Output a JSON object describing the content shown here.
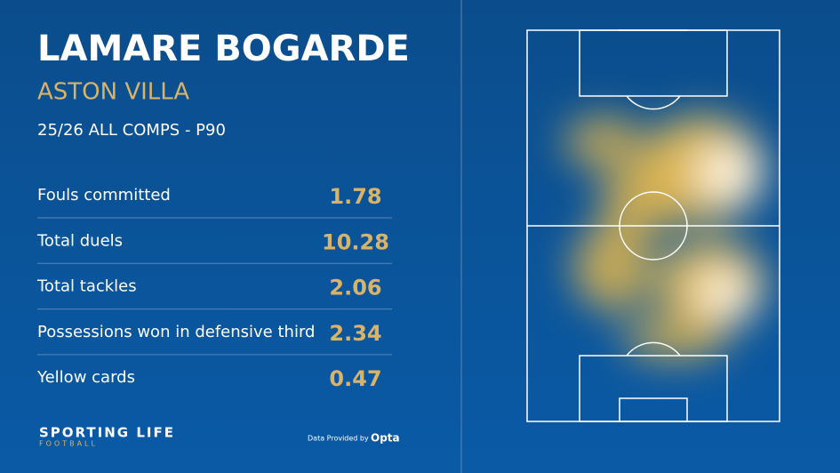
{
  "header": {
    "title": "LAMARE BOGARDE",
    "team": "ASTON VILLA",
    "season": "25/26 ALL COMPS - P90"
  },
  "stats": {
    "rows": [
      {
        "label": "Fouls committed",
        "value": 1.78
      },
      {
        "label": "Total duels",
        "value": 10.28
      },
      {
        "label": "Total tackles",
        "value": 2.06
      },
      {
        "label": "Possessions won in defensive third",
        "value": 2.34
      },
      {
        "label": "Yellow cards",
        "value": 0.47
      }
    ]
  },
  "footer": {
    "brand": "SPORTING LIFE",
    "brand_sub": "FOOTBALL",
    "credit": "Data Provided by",
    "provider": "Opta"
  }
}
